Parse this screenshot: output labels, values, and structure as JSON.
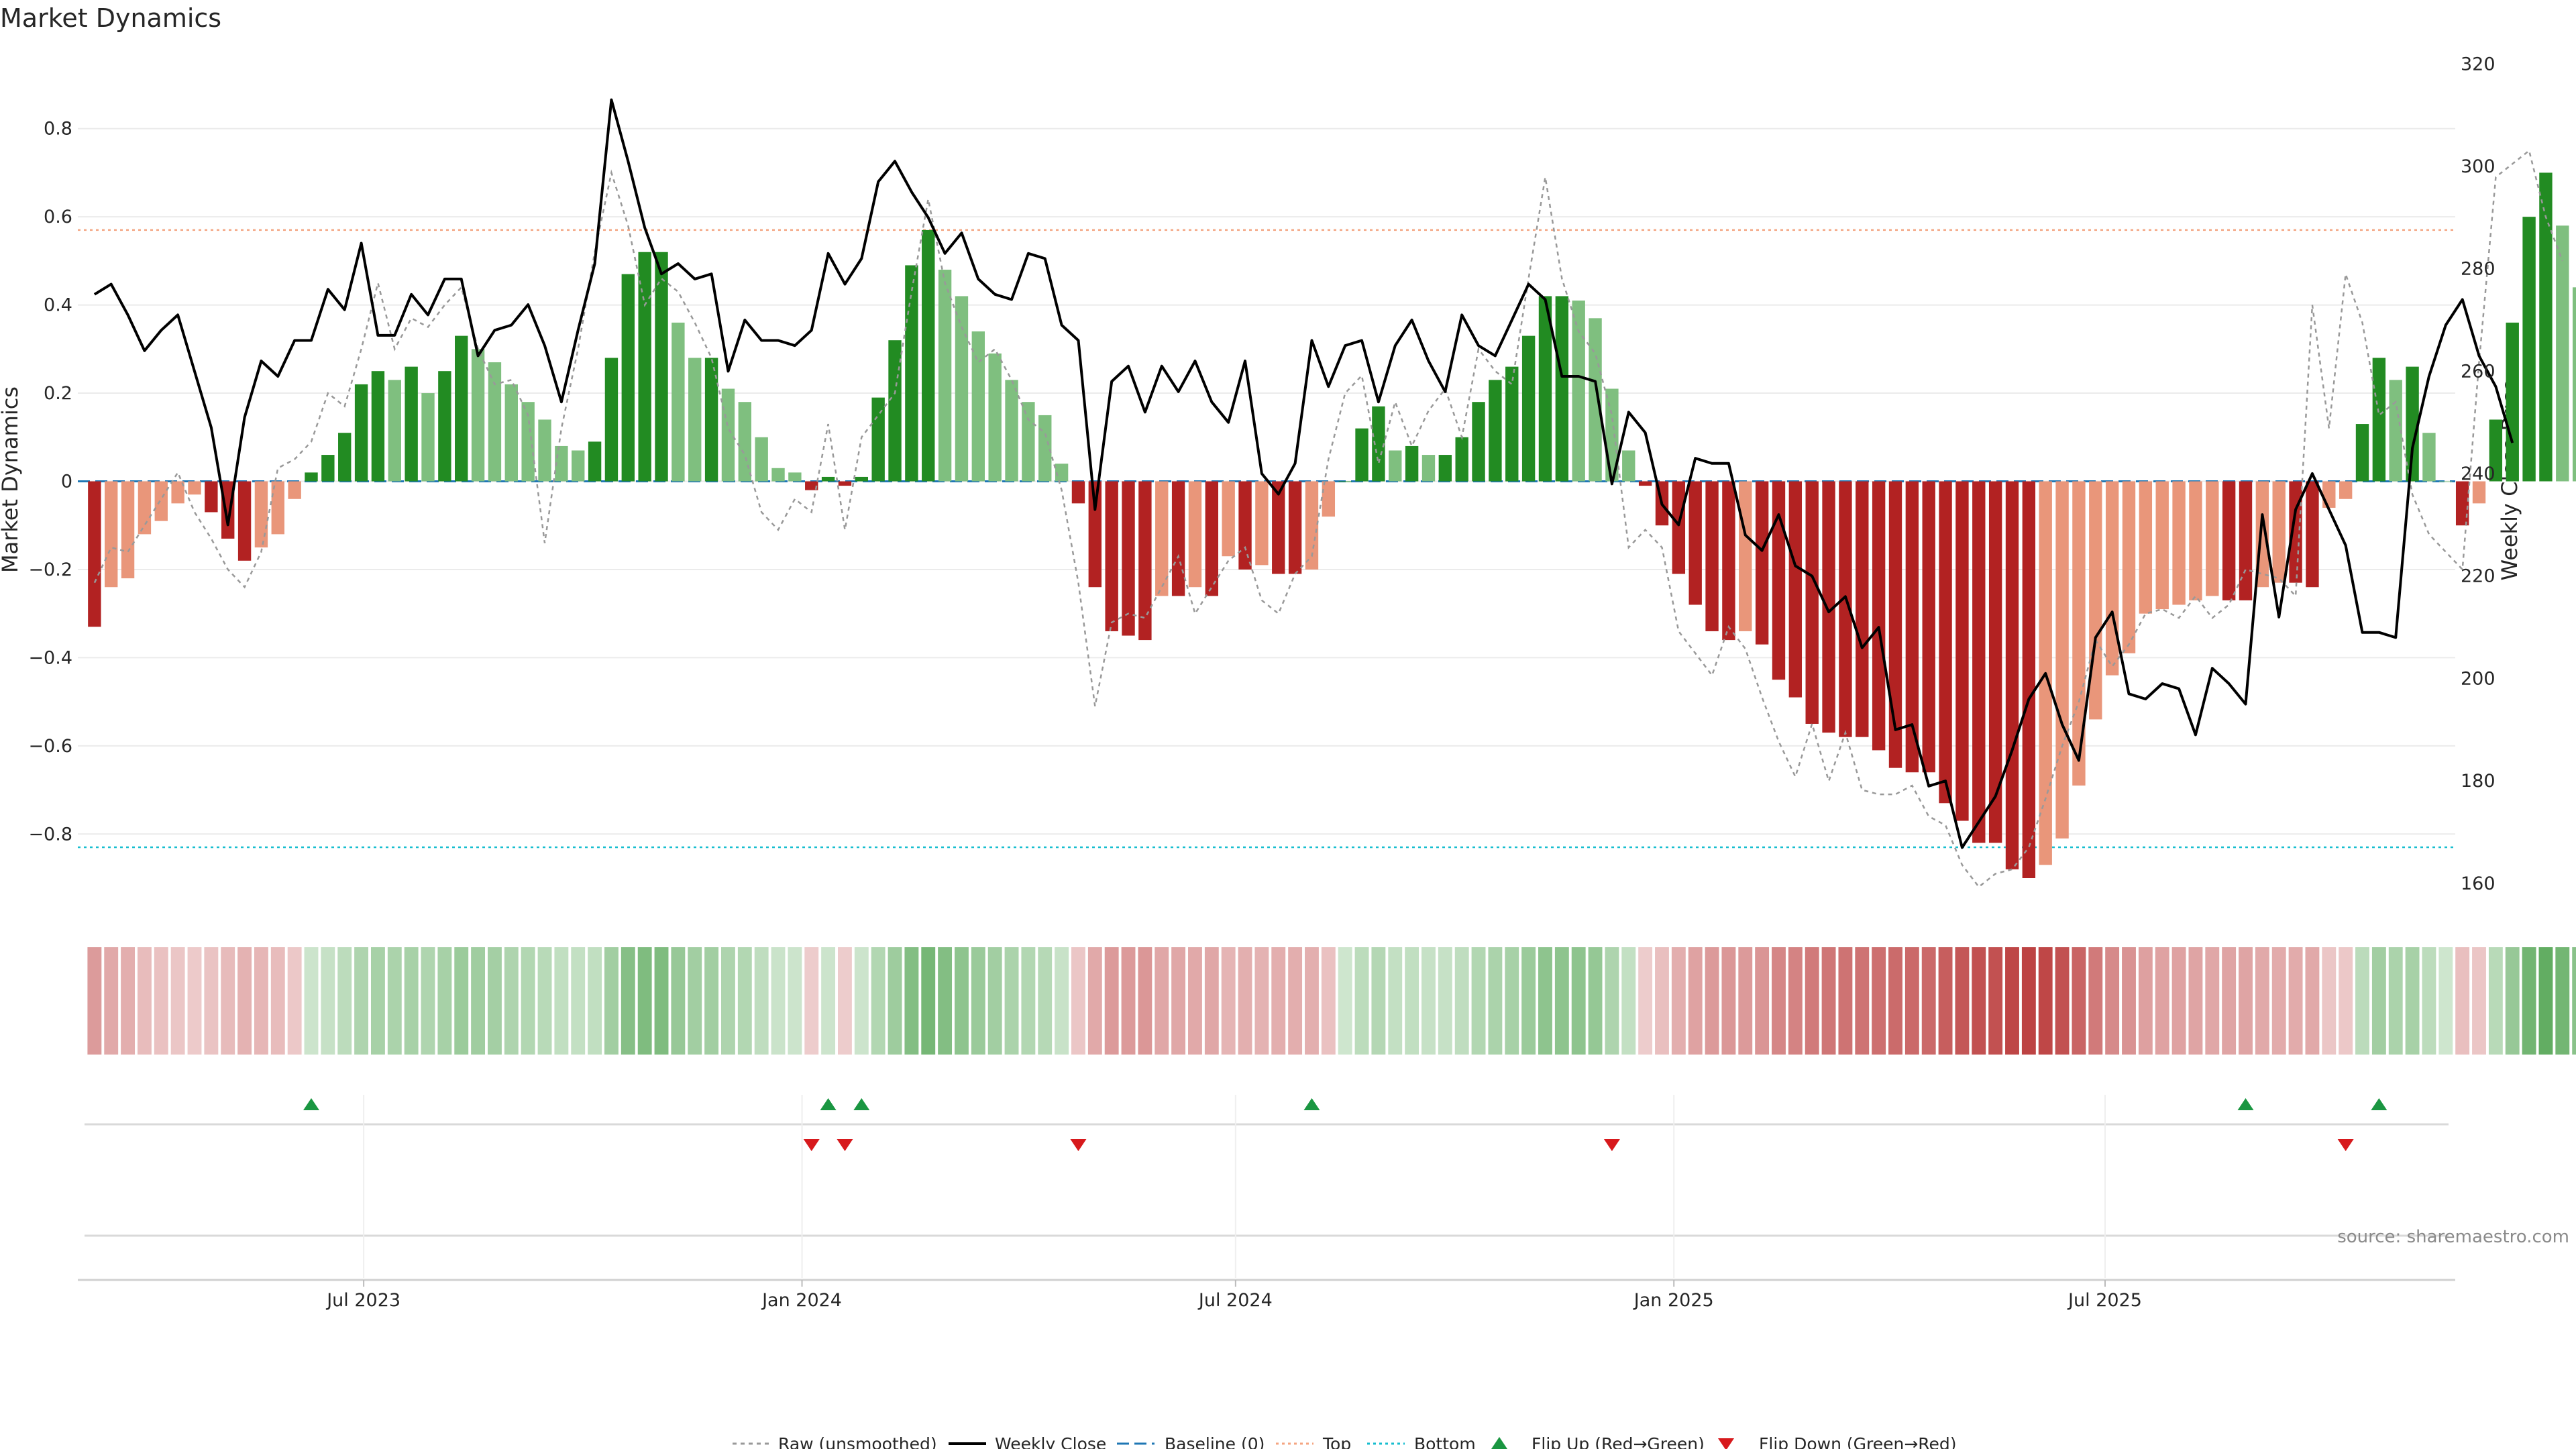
{
  "chart_data": {
    "type": "bar",
    "title": "Market Dynamics",
    "ylabel": "Market Dynamics",
    "y2label": "Weekly Close Price",
    "ylim": [
      -0.97,
      0.97
    ],
    "y2lim": [
      155,
      322
    ],
    "yticks": [
      -0.8,
      -0.6,
      -0.4,
      -0.2,
      0,
      0.2,
      0.4,
      0.6,
      0.8
    ],
    "ytick_labels": [
      "−0.8",
      "−0.6",
      "−0.4",
      "−0.2",
      "0",
      "0.2",
      "0.4",
      "0.6",
      "0.8"
    ],
    "y2ticks": [
      160,
      180,
      200,
      220,
      240,
      260,
      280,
      300,
      320
    ],
    "y2tick_labels": [
      "160",
      "180",
      "200",
      "220",
      "240",
      "260",
      "280",
      "300",
      "320"
    ],
    "xlim": [
      "2023-03-03",
      "2025-11-25"
    ],
    "x_start": "2023-03-10",
    "x_step_days": 7,
    "x_ticks": [
      {
        "date": "2023-07-01",
        "label": "Jul 2023"
      },
      {
        "date": "2024-01-01",
        "label": "Jan 2024"
      },
      {
        "date": "2024-07-01",
        "label": "Jul 2024"
      },
      {
        "date": "2025-01-01",
        "label": "Jan 2025"
      },
      {
        "date": "2025-07-01",
        "label": "Jul 2025"
      }
    ],
    "top_threshold": 0.57,
    "bottom_threshold": -0.83,
    "baseline": 0,
    "colors": {
      "strong_up": "#228b22",
      "weak_up": "#7fbf7f",
      "strong_down": "#b22222",
      "weak_down": "#e9967a",
      "raw": "#999999",
      "close": "#000000",
      "baseline": "#1f77b4",
      "top": "#f4a582",
      "bottom": "#17becf",
      "flip_up": "#1a9641",
      "flip_down": "#d7191c"
    },
    "series": [
      {
        "name": "Market Dynamics",
        "values": [
          -0.33,
          -0.24,
          -0.22,
          -0.12,
          -0.09,
          -0.05,
          -0.03,
          -0.07,
          -0.13,
          -0.18,
          -0.15,
          -0.12,
          -0.04,
          0.02,
          0.06,
          0.11,
          0.22,
          0.25,
          0.23,
          0.26,
          0.2,
          0.25,
          0.33,
          0.3,
          0.27,
          0.22,
          0.18,
          0.14,
          0.08,
          0.07,
          0.09,
          0.28,
          0.47,
          0.52,
          0.52,
          0.36,
          0.28,
          0.28,
          0.21,
          0.18,
          0.1,
          0.03,
          0.02,
          -0.02,
          0.01,
          -0.01,
          0.01,
          0.19,
          0.32,
          0.49,
          0.57,
          0.48,
          0.42,
          0.34,
          0.29,
          0.23,
          0.18,
          0.15,
          0.04,
          -0.05,
          -0.24,
          -0.34,
          -0.35,
          -0.36,
          -0.26,
          -0.26,
          -0.24,
          -0.26,
          -0.17,
          -0.2,
          -0.19,
          -0.21,
          -0.21,
          -0.2,
          -0.08,
          0.0,
          0.12,
          0.17,
          0.07,
          0.08,
          0.06,
          0.06,
          0.1,
          0.18,
          0.23,
          0.26,
          0.33,
          0.42,
          0.42,
          0.41,
          0.37,
          0.21,
          0.07,
          -0.01,
          -0.1,
          -0.21,
          -0.28,
          -0.34,
          -0.36,
          -0.34,
          -0.37,
          -0.45,
          -0.49,
          -0.55,
          -0.57,
          -0.58,
          -0.58,
          -0.61,
          -0.65,
          -0.66,
          -0.66,
          -0.73,
          -0.77,
          -0.82,
          -0.82,
          -0.88,
          -0.9,
          -0.87,
          -0.81,
          -0.69,
          -0.54,
          -0.44,
          -0.39,
          -0.3,
          -0.29,
          -0.28,
          -0.27,
          -0.26,
          -0.27,
          -0.27,
          -0.24,
          -0.23,
          -0.23,
          -0.24,
          -0.06,
          -0.04,
          0.13,
          0.28,
          0.23,
          0.26,
          0.11,
          0.0,
          -0.1,
          -0.05,
          0.14,
          0.36,
          0.6,
          0.7,
          0.58,
          0.44
        ]
      },
      {
        "name": "Raw (unsmoothed)",
        "values": [
          -0.23,
          -0.15,
          -0.16,
          -0.1,
          -0.04,
          0.02,
          -0.07,
          -0.13,
          -0.2,
          -0.24,
          -0.16,
          0.03,
          0.05,
          0.09,
          0.2,
          0.17,
          0.3,
          0.45,
          0.3,
          0.37,
          0.35,
          0.4,
          0.44,
          0.3,
          0.22,
          0.23,
          0.15,
          -0.14,
          0.12,
          0.3,
          0.52,
          0.7,
          0.58,
          0.4,
          0.46,
          0.43,
          0.36,
          0.28,
          0.12,
          0.06,
          -0.07,
          -0.11,
          -0.04,
          -0.07,
          0.13,
          -0.11,
          0.1,
          0.15,
          0.2,
          0.43,
          0.64,
          0.45,
          0.35,
          0.27,
          0.3,
          0.23,
          0.14,
          0.11,
          -0.02,
          -0.23,
          -0.51,
          -0.32,
          -0.3,
          -0.31,
          -0.24,
          -0.17,
          -0.3,
          -0.24,
          -0.18,
          -0.15,
          -0.27,
          -0.3,
          -0.21,
          -0.17,
          0.05,
          0.2,
          0.24,
          0.04,
          0.18,
          0.08,
          0.16,
          0.21,
          0.1,
          0.3,
          0.25,
          0.22,
          0.46,
          0.69,
          0.46,
          0.34,
          0.29,
          0.15,
          -0.15,
          -0.11,
          -0.15,
          -0.34,
          -0.39,
          -0.44,
          -0.33,
          -0.38,
          -0.49,
          -0.59,
          -0.67,
          -0.55,
          -0.68,
          -0.57,
          -0.7,
          -0.71,
          -0.71,
          -0.69,
          -0.76,
          -0.78,
          -0.87,
          -0.92,
          -0.89,
          -0.88,
          -0.83,
          -0.72,
          -0.6,
          -0.5,
          -0.36,
          -0.42,
          -0.37,
          -0.3,
          -0.29,
          -0.31,
          -0.26,
          -0.31,
          -0.28,
          -0.2,
          -0.21,
          -0.22,
          -0.26,
          0.4,
          0.12,
          0.47,
          0.36,
          0.15,
          0.18,
          -0.03,
          -0.12,
          -0.16,
          -0.2,
          0.27,
          0.69,
          0.72,
          0.75,
          0.6,
          0.5
        ]
      },
      {
        "name": "Weekly Close",
        "axis": "right",
        "values": [
          275,
          277,
          271,
          264,
          268,
          271,
          260,
          249,
          230,
          251,
          262,
          259,
          266,
          266,
          276,
          272,
          285,
          267,
          267,
          275,
          271,
          278,
          278,
          263,
          268,
          269,
          273,
          265,
          254,
          268,
          281,
          313,
          301,
          288,
          279,
          281,
          278,
          279,
          260,
          270,
          266,
          266,
          265,
          268,
          283,
          277,
          282,
          297,
          301,
          295,
          290,
          283,
          287,
          278,
          275,
          274,
          283,
          282,
          269,
          266,
          233,
          258,
          261,
          252,
          261,
          256,
          262,
          254,
          250,
          262,
          240,
          236,
          242,
          266,
          257,
          265,
          266,
          254,
          265,
          270,
          262,
          256,
          271,
          265,
          263,
          270,
          277,
          274,
          259,
          259,
          258,
          238,
          252,
          248,
          234,
          230,
          243,
          242,
          242,
          228,
          225,
          232,
          222,
          220,
          213,
          216,
          206,
          210,
          190,
          191,
          179,
          180,
          167,
          172,
          177,
          186,
          196,
          201,
          191,
          184,
          208,
          213,
          197,
          196,
          199,
          198,
          189,
          202,
          199,
          195,
          232,
          212,
          233,
          240,
          233,
          226,
          209,
          209,
          208,
          245,
          259,
          269,
          274,
          263,
          257,
          246
        ]
      }
    ],
    "raw_label": "Raw (unsmoothed)",
    "close_label": "Weekly Close",
    "baseline_label": "Baseline (0)",
    "top_label": "Top",
    "bottom_label": "Bottom",
    "flip_up_label": "Flip Up (Red→Green)",
    "flip_down_label": "Flip Down (Green→Red)",
    "flip_up_indices": [
      13,
      44,
      46,
      73,
      129,
      137
    ],
    "flip_down_indices": [
      43,
      45,
      59,
      91,
      135
    ],
    "source": "source: sharemaestro.com"
  }
}
